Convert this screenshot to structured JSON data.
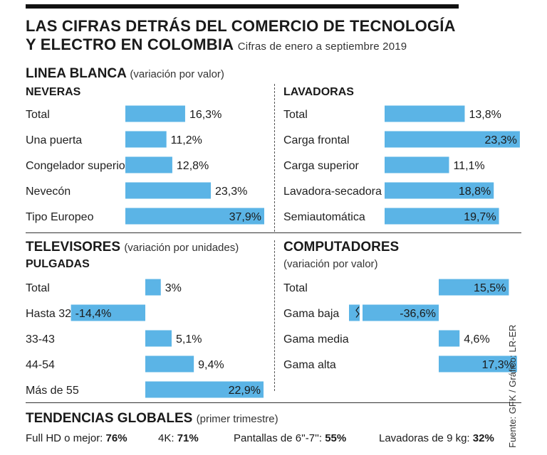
{
  "header": {
    "title_line1": "LAS CIFRAS DETRÁS DEL COMERCIO DE TECNOLOGÍA",
    "title_line2": "Y ELECTRO EN COLOMBIA",
    "subtitle": "Cifras de enero a septiembre 2019"
  },
  "sections": {
    "linea_blanca": {
      "title": "LINEA BLANCA",
      "note": "(variación por valor)"
    },
    "televisores": {
      "title": "TELEVISORES",
      "note": "(variación por unidades)"
    },
    "computadores": {
      "title": "COMPUTADORES",
      "note": "(variación por valor)"
    },
    "tendencias": {
      "title": "TENDENCIAS GLOBALES",
      "note": "(primer trimestre)"
    }
  },
  "colors": {
    "bar": "#5bb4e6",
    "text": "#1a1a1a"
  },
  "chart_data": [
    {
      "id": "neveras",
      "type": "bar",
      "title": "NEVERAS",
      "categories": [
        "Total",
        "Una puerta",
        "Congelador superior",
        "Nevecón",
        "Tipo Europeo"
      ],
      "values": [
        16.3,
        11.2,
        12.8,
        23.3,
        37.9
      ],
      "value_labels": [
        "16,3%",
        "11,2%",
        "12,8%",
        "23,3%",
        "37,9%"
      ]
    },
    {
      "id": "lavadoras",
      "type": "bar",
      "title": "LAVADORAS",
      "categories": [
        "Total",
        "Carga frontal",
        "Carga superior",
        "Lavadora-secadora",
        "Semiautomática"
      ],
      "values": [
        13.8,
        23.3,
        11.1,
        18.8,
        19.7
      ],
      "value_labels": [
        "13,8%",
        "23,3%",
        "11,1%",
        "18,8%",
        "19,7%"
      ]
    },
    {
      "id": "televisores",
      "type": "bar",
      "title": "PULGADAS",
      "categories": [
        "Total",
        "Hasta 32",
        "33-43",
        "44-54",
        "Más de 55"
      ],
      "values": [
        3,
        -14.4,
        5.1,
        9.4,
        22.9
      ],
      "value_labels": [
        "3%",
        "-14,4%",
        "5,1%",
        "9,4%",
        "22,9%"
      ]
    },
    {
      "id": "computadores",
      "type": "bar",
      "title": "",
      "categories": [
        "Total",
        "Gama baja",
        "Gama media",
        "Gama alta"
      ],
      "values": [
        15.5,
        -36.6,
        4.6,
        17.3
      ],
      "value_labels": [
        "15,5%",
        "-36,6%",
        "4,6%",
        "17,3%"
      ],
      "axis_break": "Gama baja"
    }
  ],
  "trends": [
    {
      "label": "Full HD o mejor:",
      "value": "76%"
    },
    {
      "label": "4K:",
      "value": "71%"
    },
    {
      "label": "Pantallas de 6''-7'':",
      "value": "55%"
    },
    {
      "label": "Lavadoras de 9 kg:",
      "value": "32%"
    }
  ],
  "source": "Fuente: GFK / Gráfico: LR-ER"
}
